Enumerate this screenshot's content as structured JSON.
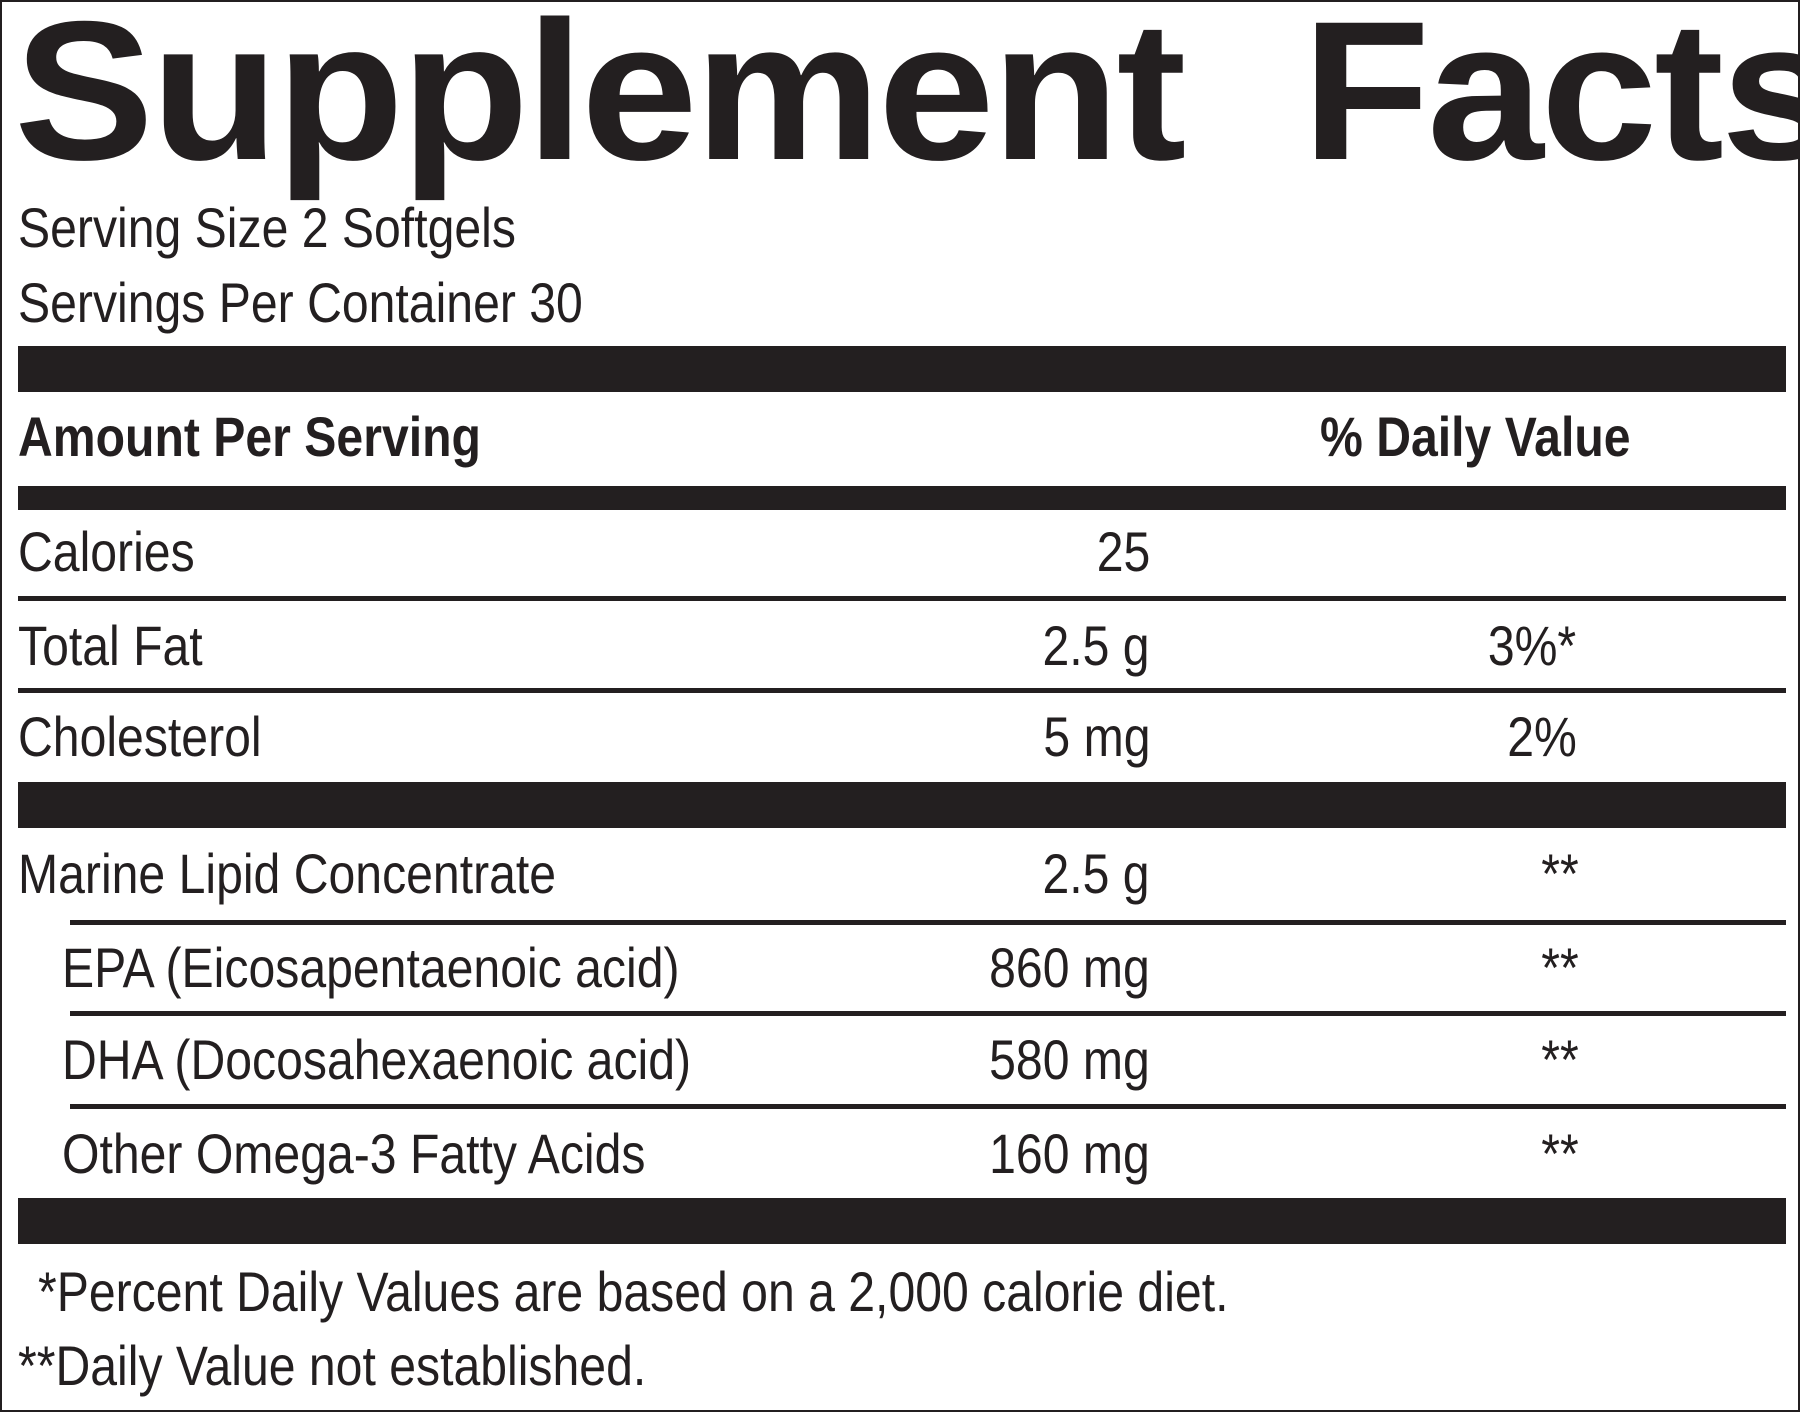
{
  "title": "Supplement  Facts",
  "serving": {
    "size": "Serving Size 2 Softgels",
    "per_container": "Servings Per Container 30"
  },
  "header": {
    "amount": "Amount Per Serving",
    "dv": "% Daily Value"
  },
  "nutrients": [
    {
      "name": "Calories",
      "amount": "25",
      "dv": ""
    },
    {
      "name": "Total Fat",
      "amount": "2.5 g",
      "dv": "3%*"
    },
    {
      "name": "Cholesterol",
      "amount": "5 mg",
      "dv": "2%"
    }
  ],
  "ingredients": [
    {
      "name": "Marine Lipid Concentrate",
      "amount": "2.5 g",
      "dv": "**"
    },
    {
      "name": "EPA (Eicosapentaenoic acid)",
      "amount": "860 mg",
      "dv": "**"
    },
    {
      "name": "DHA (Docosahexaenoic acid)",
      "amount": "580 mg",
      "dv": "**"
    },
    {
      "name": "Other Omega-3 Fatty Acids",
      "amount": "160 mg",
      "dv": "**"
    }
  ],
  "footnotes": {
    "percent": "*Percent Daily Values are based on a 2,000 calorie diet.",
    "not_established": "**Daily Value not established."
  }
}
